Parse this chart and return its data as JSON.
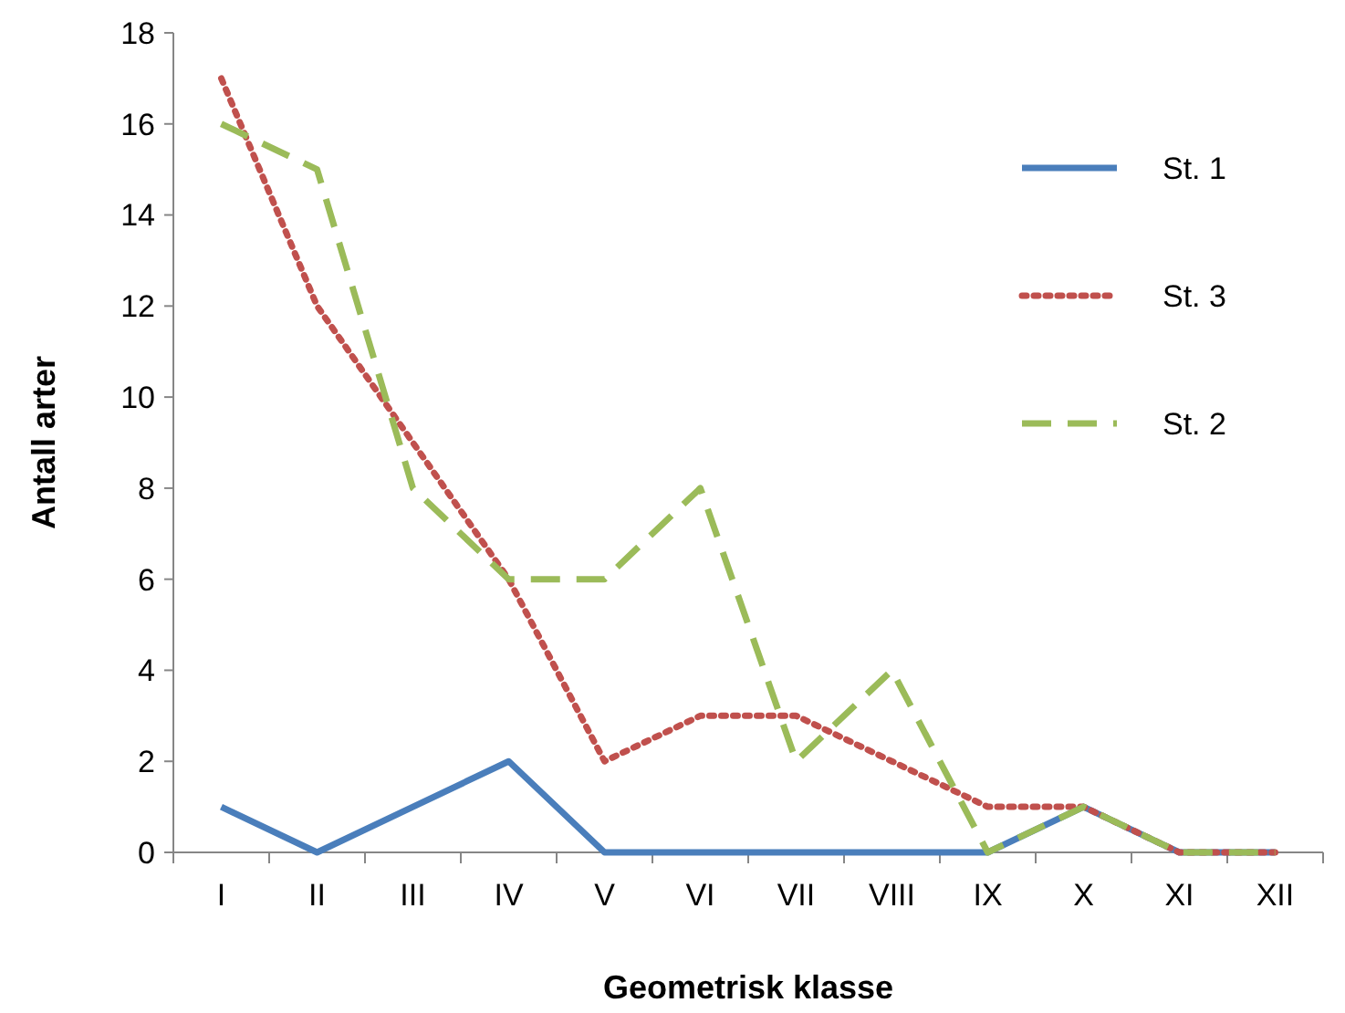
{
  "chart_data": {
    "type": "line",
    "xlabel": "Geometrisk klasse",
    "ylabel": "Antall arter",
    "categories": [
      "I",
      "II",
      "III",
      "IV",
      "V",
      "VI",
      "VII",
      "VIII",
      "IX",
      "X",
      "XI",
      "XII"
    ],
    "ylim": [
      0,
      18
    ],
    "yticks": [
      0,
      2,
      4,
      6,
      8,
      10,
      12,
      14,
      16,
      18
    ],
    "grid": false,
    "legend": "top right",
    "marker": "none",
    "series": [
      {
        "name": "St. 1",
        "color": "#4a7ebb",
        "line_style": "solid",
        "values": [
          1,
          0,
          1,
          2,
          0,
          0,
          0,
          0,
          0,
          1,
          0,
          0
        ]
      },
      {
        "name": "St. 3",
        "color": "#c0504d",
        "line_style": "dotted",
        "values": [
          17,
          12,
          9,
          6,
          2,
          3,
          3,
          2,
          1,
          1,
          0,
          0
        ]
      },
      {
        "name": "St. 2",
        "color": "#9bbb59",
        "line_style": "dashed",
        "values": [
          16,
          15,
          8,
          6,
          6,
          8,
          2,
          4,
          0,
          1,
          0,
          0
        ]
      }
    ]
  }
}
